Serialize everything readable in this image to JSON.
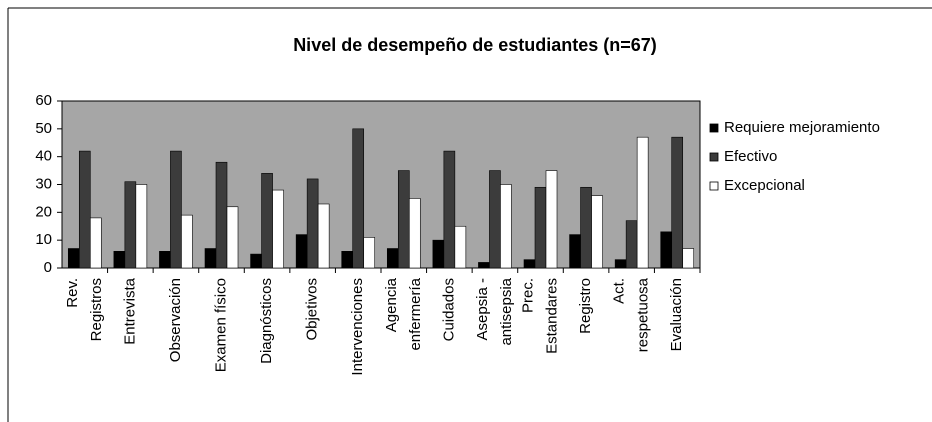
{
  "chart_data": {
    "type": "bar",
    "title": "Nivel de desempeño de estudiantes  (n=67)",
    "categories": [
      "Rev.\nRegistros",
      "Entrevista",
      "Observación",
      "Examen físico",
      "Diagnósticos",
      "Objetivos",
      "Intervenciones",
      "Agencia\nenfermería",
      "Cuidados",
      "Asepsia -\nantisepsia",
      "Prec.\nEstandares",
      "Registro",
      "Act.\nrespetuosa",
      "Evaluación"
    ],
    "series": [
      {
        "name": "Requiere mejoramiento",
        "color": "#000000",
        "values": [
          7,
          6,
          6,
          7,
          5,
          12,
          6,
          7,
          10,
          2,
          3,
          12,
          3,
          13
        ]
      },
      {
        "name": "Efectivo",
        "color": "#3c3c3c",
        "values": [
          42,
          31,
          42,
          38,
          34,
          32,
          50,
          35,
          42,
          35,
          29,
          29,
          17,
          47
        ]
      },
      {
        "name": "Excepcional",
        "color": "#ffffff",
        "values": [
          18,
          30,
          19,
          22,
          28,
          23,
          11,
          25,
          15,
          30,
          35,
          26,
          47,
          7
        ]
      }
    ],
    "ylim": [
      0,
      60
    ],
    "yticks": [
      0,
      10,
      20,
      30,
      40,
      50,
      60
    ],
    "grid": false,
    "legend": "right"
  }
}
